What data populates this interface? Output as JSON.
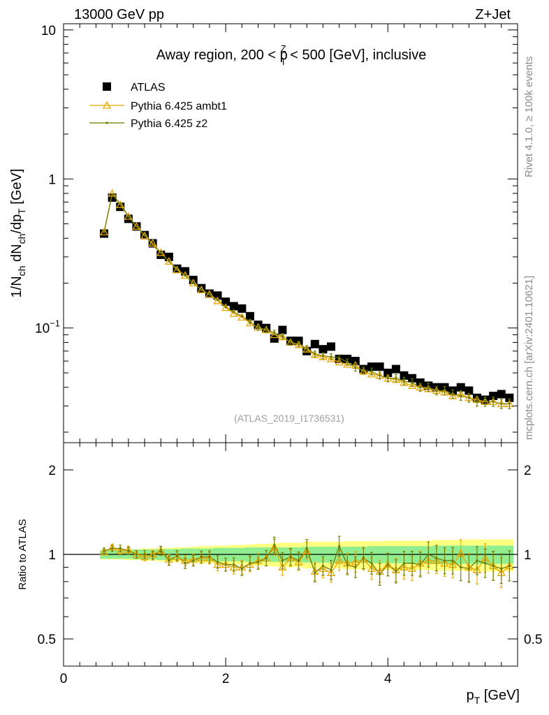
{
  "header": {
    "left": "13000 GeV pp",
    "right": "Z+Jet"
  },
  "side_labels": {
    "rivet": "Rivet 4.1.0, ≥ 100k events",
    "mcplots": "mcplots.cern.ch [arXiv:2401.10621]"
  },
  "colors": {
    "atlas": "#000000",
    "ambt1": "#e8a800",
    "z2": "#6b7a00",
    "band_inner": "#90ee90",
    "band_outer": "#ffff80"
  },
  "chart_data": [
    {
      "type": "scatter",
      "title": "Away region, 200 < p",
      "title_sup": "Z",
      "title_sub": "T",
      "title_end": " < 500 [GeV], inclusive",
      "ylabel": "1/N",
      "ylabel_parts": [
        "1/N",
        "ch",
        " dN",
        "ch",
        "/dp",
        "T",
        " [GeV]"
      ],
      "analysis_id": "(ATLAS_2019_I1736531)",
      "yscale": "log",
      "ylim": [
        0.017,
        11
      ],
      "xlim": [
        0,
        5.6
      ],
      "yticks": [
        {
          "v": 10,
          "label": "10"
        },
        {
          "v": 1,
          "label": "1"
        },
        {
          "v": 0.1,
          "label": "10",
          "sup": "−1"
        }
      ],
      "legend": [
        "ATLAS",
        "Pythia 6.425 ambt1",
        "Pythia 6.425 z2"
      ],
      "x": [
        0.5,
        0.6,
        0.7,
        0.8,
        0.9,
        1.0,
        1.1,
        1.2,
        1.3,
        1.4,
        1.5,
        1.6,
        1.7,
        1.8,
        1.9,
        2.0,
        2.1,
        2.2,
        2.3,
        2.4,
        2.5,
        2.6,
        2.7,
        2.8,
        2.9,
        3.0,
        3.1,
        3.2,
        3.3,
        3.4,
        3.5,
        3.6,
        3.7,
        3.8,
        3.9,
        4.0,
        4.1,
        4.2,
        4.3,
        4.4,
        4.5,
        4.6,
        4.7,
        4.8,
        4.9,
        5.0,
        5.1,
        5.2,
        5.3,
        5.4,
        5.5
      ],
      "series": [
        {
          "name": "ATLAS",
          "values": [
            0.43,
            0.75,
            0.65,
            0.54,
            0.48,
            0.42,
            0.37,
            0.31,
            0.3,
            0.25,
            0.24,
            0.21,
            0.185,
            0.17,
            0.165,
            0.15,
            0.14,
            0.135,
            0.12,
            0.105,
            0.1,
            0.085,
            0.097,
            0.082,
            0.082,
            0.07,
            0.078,
            0.072,
            0.075,
            0.062,
            0.062,
            0.06,
            0.053,
            0.055,
            0.055,
            0.05,
            0.053,
            0.048,
            0.046,
            0.043,
            0.041,
            0.04,
            0.04,
            0.038,
            0.04,
            0.038,
            0.034,
            0.033,
            0.035,
            0.036,
            0.034
          ]
        },
        {
          "name": "Pythia 6.425 ambt1",
          "values": [
            0.44,
            0.8,
            0.67,
            0.56,
            0.48,
            0.415,
            0.37,
            0.32,
            0.28,
            0.245,
            0.225,
            0.2,
            0.18,
            0.168,
            0.152,
            0.137,
            0.125,
            0.118,
            0.108,
            0.101,
            0.097,
            0.09,
            0.087,
            0.08,
            0.077,
            0.072,
            0.066,
            0.064,
            0.062,
            0.059,
            0.057,
            0.056,
            0.051,
            0.049,
            0.048,
            0.046,
            0.045,
            0.043,
            0.041,
            0.04,
            0.039,
            0.038,
            0.037,
            0.035,
            0.036,
            0.034,
            0.033,
            0.032,
            0.032,
            0.031,
            0.031
          ]
        },
        {
          "name": "Pythia 6.425 z2",
          "values": [
            0.44,
            0.79,
            0.68,
            0.56,
            0.48,
            0.42,
            0.36,
            0.32,
            0.28,
            0.25,
            0.225,
            0.2,
            0.18,
            0.168,
            0.155,
            0.138,
            0.128,
            0.12,
            0.11,
            0.1,
            0.097,
            0.093,
            0.088,
            0.08,
            0.078,
            0.073,
            0.067,
            0.065,
            0.064,
            0.063,
            0.059,
            0.054,
            0.052,
            0.051,
            0.048,
            0.046,
            0.046,
            0.044,
            0.043,
            0.04,
            0.04,
            0.038,
            0.038,
            0.036,
            0.035,
            0.034,
            0.032,
            0.032,
            0.032,
            0.031,
            0.031
          ]
        }
      ]
    },
    {
      "type": "line",
      "ylabel": "Ratio to ATLAS",
      "xlabel": "p",
      "xlabel_sub": "T",
      "xlabel_end": " [GeV]",
      "yscale": "log",
      "ylim": [
        0.4,
        2.5
      ],
      "xlim": [
        0,
        5.6
      ],
      "yticks": [
        {
          "v": 2,
          "label": "2"
        },
        {
          "v": 1,
          "label": "1"
        },
        {
          "v": 0.5,
          "label": "0.5"
        }
      ],
      "xticks": [
        {
          "v": 0,
          "label": "0"
        },
        {
          "v": 2,
          "label": "2"
        },
        {
          "v": 4,
          "label": "4"
        }
      ],
      "x": [
        0.5,
        0.6,
        0.7,
        0.8,
        0.9,
        1.0,
        1.1,
        1.2,
        1.3,
        1.4,
        1.5,
        1.6,
        1.7,
        1.8,
        1.9,
        2.0,
        2.1,
        2.2,
        2.3,
        2.4,
        2.5,
        2.6,
        2.7,
        2.8,
        2.9,
        3.0,
        3.1,
        3.2,
        3.3,
        3.4,
        3.5,
        3.6,
        3.7,
        3.8,
        3.9,
        4.0,
        4.1,
        4.2,
        4.3,
        4.4,
        4.5,
        4.6,
        4.7,
        4.8,
        4.9,
        5.0,
        5.1,
        5.2,
        5.3,
        5.4,
        5.5
      ],
      "band_inner": [
        0.035,
        0.035,
        0.035,
        0.035,
        0.04,
        0.04,
        0.04,
        0.045,
        0.045,
        0.045,
        0.05,
        0.05,
        0.05,
        0.05,
        0.055,
        0.055,
        0.055,
        0.055,
        0.06,
        0.06,
        0.06,
        0.06,
        0.06,
        0.06,
        0.06,
        0.065,
        0.065,
        0.065,
        0.065,
        0.065,
        0.065,
        0.065,
        0.065,
        0.07,
        0.07,
        0.07,
        0.07,
        0.07,
        0.07,
        0.07,
        0.07,
        0.075,
        0.075,
        0.075,
        0.075,
        0.075,
        0.075,
        0.075,
        0.075,
        0.075,
        0.075
      ],
      "band_outer": [
        0.04,
        0.04,
        0.04,
        0.045,
        0.045,
        0.05,
        0.05,
        0.055,
        0.055,
        0.06,
        0.06,
        0.065,
        0.07,
        0.07,
        0.075,
        0.075,
        0.08,
        0.08,
        0.085,
        0.09,
        0.09,
        0.095,
        0.1,
        0.1,
        0.1,
        0.11,
        0.11,
        0.11,
        0.11,
        0.11,
        0.115,
        0.115,
        0.115,
        0.115,
        0.115,
        0.12,
        0.12,
        0.12,
        0.12,
        0.12,
        0.12,
        0.125,
        0.125,
        0.125,
        0.125,
        0.13,
        0.13,
        0.13,
        0.13,
        0.13,
        0.13
      ],
      "series": [
        {
          "name": "Pythia 6.425 ambt1",
          "values": [
            1.02,
            1.06,
            1.03,
            1.04,
            1.0,
            0.98,
            1.0,
            1.03,
            0.96,
            0.98,
            0.95,
            0.96,
            0.97,
            0.97,
            0.92,
            0.92,
            0.9,
            0.9,
            0.92,
            0.95,
            0.97,
            1.06,
            0.9,
            0.97,
            0.94,
            1.03,
            0.87,
            0.89,
            0.86,
            0.95,
            0.93,
            0.94,
            0.96,
            0.89,
            0.87,
            0.92,
            0.88,
            0.9,
            0.89,
            0.93,
            0.95,
            0.95,
            0.93,
            0.92,
            1.01,
            0.9,
            0.88,
            0.97,
            0.91,
            0.86,
            0.91
          ]
        },
        {
          "name": "Pythia 6.425 z2",
          "values": [
            1.03,
            1.05,
            1.05,
            1.03,
            1.0,
            1.0,
            0.99,
            1.03,
            0.95,
            0.99,
            0.93,
            0.95,
            0.98,
            0.98,
            0.94,
            0.92,
            0.92,
            0.89,
            0.93,
            0.94,
            0.97,
            1.08,
            0.95,
            0.98,
            0.95,
            1.05,
            0.86,
            0.91,
            0.88,
            1.07,
            0.92,
            0.9,
            0.97,
            0.93,
            0.85,
            0.92,
            0.87,
            0.93,
            0.93,
            0.92,
            1.0,
            0.97,
            0.95,
            0.95,
            0.9,
            0.89,
            0.95,
            0.93,
            0.91,
            0.89,
            0.91
          ]
        }
      ]
    }
  ]
}
